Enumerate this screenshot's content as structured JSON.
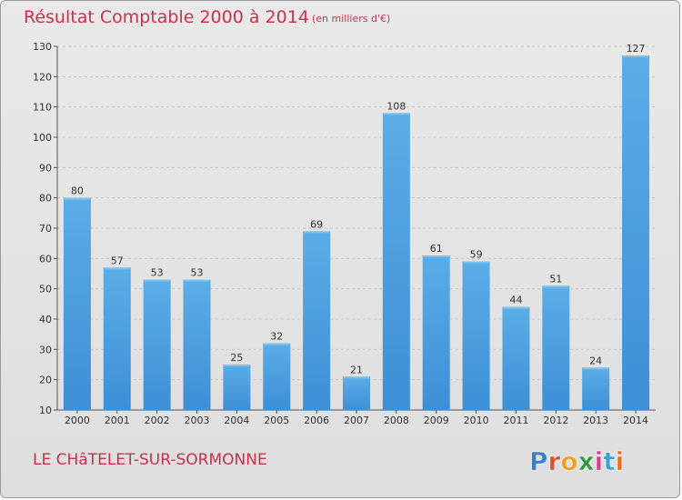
{
  "chart_data": {
    "type": "bar",
    "title": "Résultat Comptable 2000 à 2014",
    "subtitle": "(en milliers d'€)",
    "categories": [
      "2000",
      "2001",
      "2002",
      "2003",
      "2004",
      "2005",
      "2006",
      "2007",
      "2008",
      "2009",
      "2010",
      "2011",
      "2012",
      "2013",
      "2014"
    ],
    "values": [
      80,
      57,
      53,
      53,
      25,
      32,
      69,
      21,
      108,
      61,
      59,
      44,
      51,
      24,
      127
    ],
    "ylim": [
      10,
      130
    ],
    "yticks": [
      10,
      20,
      30,
      40,
      50,
      60,
      70,
      80,
      90,
      100,
      110,
      120,
      130
    ],
    "xlabel": "",
    "ylabel": "",
    "grid": true,
    "bar_color": "#3d8fd6",
    "bar_color_light": "#5aade6"
  },
  "commune_name": "LE CHâTELET-SUR-SORMONNE",
  "logo": {
    "text": "Proxiti",
    "letter_colors": [
      "#3a7fc8",
      "#e04a2f",
      "#f0a020",
      "#2f9a3a",
      "#d63c8c",
      "#3aa0d8",
      "#e86a1a"
    ]
  }
}
